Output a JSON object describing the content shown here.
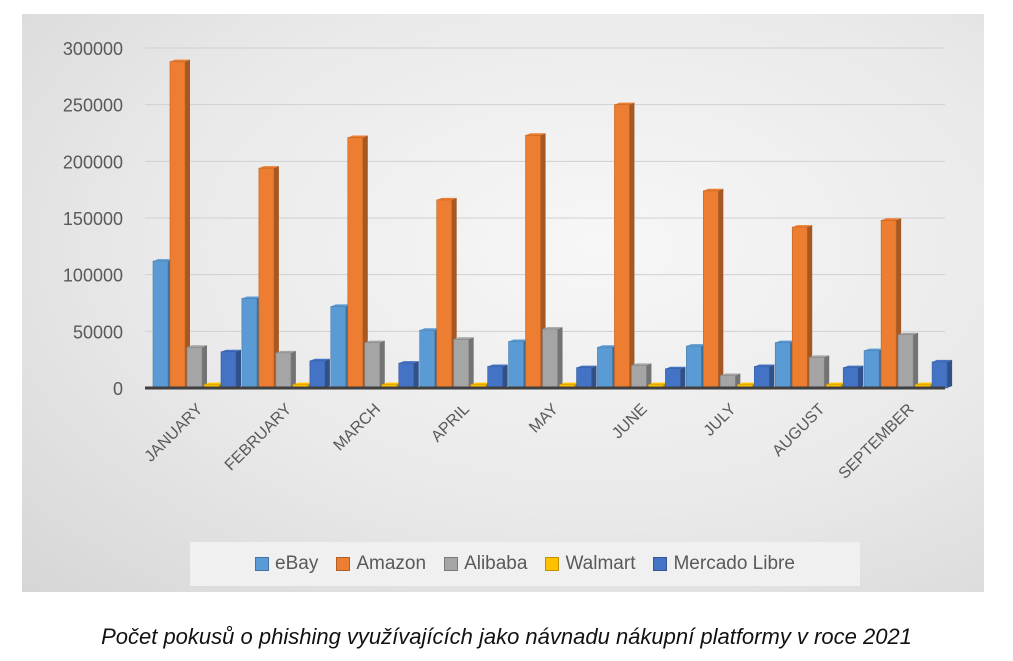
{
  "chart_data": {
    "type": "bar",
    "title": "",
    "xlabel": "",
    "ylabel": "",
    "ylim": [
      0,
      300000
    ],
    "yticks": [
      "0",
      "50000",
      "100000",
      "150000",
      "200000",
      "250000",
      "300000"
    ],
    "grid": true,
    "legend_position": "bottom",
    "categories": [
      "JANUARY",
      "FEBRUARY",
      "MARCH",
      "APRIL",
      "MAY",
      "JUNE",
      "JULY",
      "AUGUST",
      "SEPTEMBER"
    ],
    "series": [
      {
        "name": "eBay",
        "color": "#5b9bd5",
        "values": [
          112000,
          79000,
          72000,
          51000,
          41000,
          36000,
          37000,
          40000,
          33000
        ]
      },
      {
        "name": "Amazon",
        "color": "#ed7d31",
        "values": [
          288000,
          194000,
          221000,
          166000,
          223000,
          250000,
          174000,
          142000,
          148000
        ]
      },
      {
        "name": "Alibaba",
        "color": "#a5a5a5",
        "values": [
          36000,
          31000,
          40000,
          43000,
          52000,
          20000,
          11000,
          27000,
          47000
        ]
      },
      {
        "name": "Walmart",
        "color": "#ffc000",
        "values": [
          3000,
          3000,
          3000,
          3000,
          3000,
          3000,
          3000,
          3000,
          3000
        ]
      },
      {
        "name": "Mercado Libre",
        "color": "#4472c4",
        "values": [
          32000,
          24000,
          22000,
          19000,
          18000,
          17000,
          19000,
          18000,
          23000
        ]
      }
    ]
  },
  "caption": "Počet pokusů o phishing využívajících jako návnadu nákupní platformy v roce 2021"
}
